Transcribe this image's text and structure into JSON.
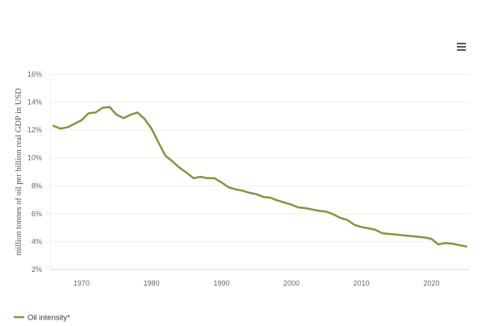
{
  "menu": {
    "icon": "hamburger-menu-icon"
  },
  "chart_data": {
    "type": "line",
    "title": "",
    "xlabel": "",
    "ylabel": "million tonnes of oil per billion real GDP in USD",
    "xlim": [
      1965.5,
      2025.5
    ],
    "ylim": [
      2,
      16
    ],
    "x_ticks": [
      1970,
      1980,
      1990,
      2000,
      2010,
      2020
    ],
    "y_ticks": [
      2,
      4,
      6,
      8,
      10,
      12,
      14,
      16
    ],
    "y_tick_labels": [
      "2%",
      "4%",
      "6%",
      "8%",
      "10%",
      "12%",
      "14%",
      "16%"
    ],
    "grid": true,
    "legend_position": "bottom-left",
    "series": [
      {
        "name": "Oil intensity*",
        "color": "#7c9a3a",
        "x": [
          1966,
          1967,
          1968,
          1969,
          1970,
          1971,
          1972,
          1973,
          1974,
          1975,
          1976,
          1977,
          1978,
          1979,
          1980,
          1981,
          1982,
          1983,
          1984,
          1985,
          1986,
          1987,
          1988,
          1989,
          1990,
          1991,
          1992,
          1993,
          1994,
          1995,
          1996,
          1997,
          1998,
          1999,
          2000,
          2001,
          2002,
          2003,
          2004,
          2005,
          2006,
          2007,
          2008,
          2009,
          2010,
          2011,
          2012,
          2013,
          2014,
          2015,
          2016,
          2017,
          2018,
          2019,
          2020,
          2021,
          2022,
          2023,
          2024,
          2025
        ],
        "y": [
          12.3,
          12.1,
          12.2,
          12.45,
          12.7,
          13.2,
          13.25,
          13.6,
          13.65,
          13.1,
          12.85,
          13.1,
          13.25,
          12.8,
          12.1,
          11.1,
          10.15,
          9.75,
          9.3,
          8.95,
          8.55,
          8.65,
          8.55,
          8.55,
          8.25,
          7.9,
          7.75,
          7.65,
          7.5,
          7.4,
          7.2,
          7.15,
          6.95,
          6.8,
          6.65,
          6.45,
          6.4,
          6.3,
          6.2,
          6.15,
          5.95,
          5.7,
          5.55,
          5.2,
          5.05,
          4.95,
          4.85,
          4.6,
          4.55,
          4.5,
          4.45,
          4.4,
          4.35,
          4.3,
          4.2,
          3.8,
          3.9,
          3.85,
          3.75,
          3.65
        ]
      }
    ]
  }
}
